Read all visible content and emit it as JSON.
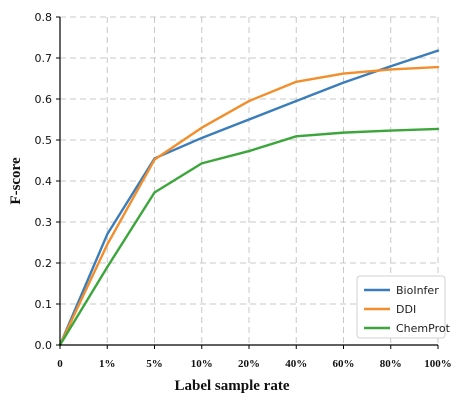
{
  "chart_data": {
    "type": "line",
    "xlabel": "Label sample rate",
    "ylabel": "F-score",
    "categories": [
      "0",
      "1%",
      "5%",
      "10%",
      "20%",
      "40%",
      "60%",
      "80%",
      "100%"
    ],
    "ylim": [
      0,
      0.8
    ],
    "yticks": [
      "0.0",
      "0.1",
      "0.2",
      "0.3",
      "0.4",
      "0.5",
      "0.6",
      "0.7",
      "0.8"
    ],
    "grid": true,
    "legend_position": "bottom-right",
    "series": [
      {
        "name": "BioInfer",
        "color": "#3b7dba",
        "values": [
          0.0,
          0.27,
          0.455,
          0.505,
          0.55,
          0.595,
          0.64,
          0.68,
          0.718
        ]
      },
      {
        "name": "DDI",
        "color": "#f28e2b",
        "values": [
          0.0,
          0.245,
          0.452,
          0.53,
          0.595,
          0.642,
          0.662,
          0.672,
          0.678
        ]
      },
      {
        "name": "ChemProt",
        "color": "#3ca63c",
        "values": [
          0.0,
          0.19,
          0.372,
          0.443,
          0.473,
          0.509,
          0.518,
          0.523,
          0.527
        ]
      }
    ]
  }
}
